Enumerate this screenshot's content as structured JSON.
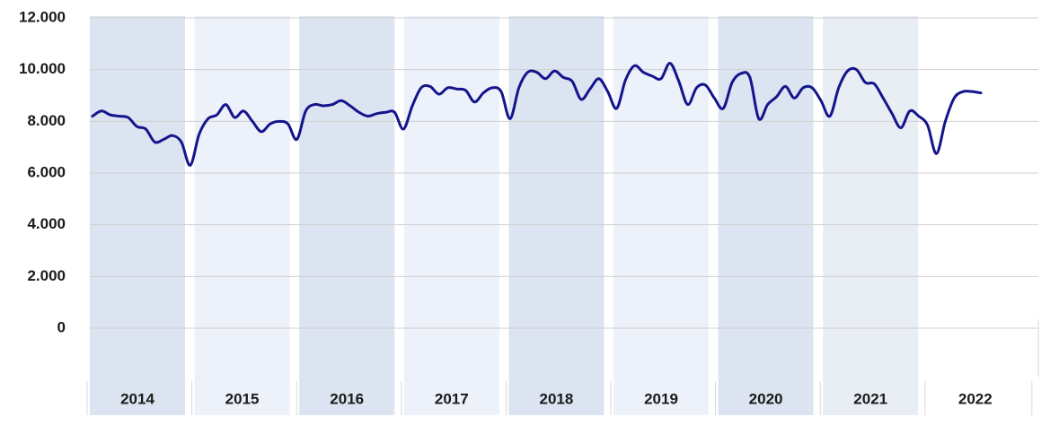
{
  "chart_data": {
    "type": "line",
    "categories": [
      "2014",
      "2015",
      "2016",
      "2017",
      "2018",
      "2019",
      "2020",
      "2021",
      "2022"
    ],
    "values": [
      [
        8200,
        8400,
        8250,
        8200,
        8150,
        7800,
        7700,
        7200,
        7300,
        7450,
        7200,
        6300
      ],
      [
        7500,
        8100,
        8250,
        8650,
        8150,
        8400,
        8000,
        7600,
        7900,
        8000,
        7900,
        7300
      ],
      [
        8400,
        8650,
        8600,
        8650,
        8800,
        8600,
        8350,
        8200,
        8300,
        8350,
        8350,
        7700
      ],
      [
        8600,
        9300,
        9350,
        9050,
        9300,
        9250,
        9200,
        8750,
        9100,
        9300,
        9150,
        8100
      ],
      [
        9300,
        9900,
        9900,
        9650,
        9950,
        9700,
        9550,
        8850,
        9250,
        9650,
        9150,
        8500
      ],
      [
        9600,
        10150,
        9900,
        9750,
        9650,
        10250,
        9550,
        8650,
        9300,
        9400,
        8900,
        8500
      ],
      [
        9500,
        9850,
        9700,
        8100,
        8650,
        8950,
        9350,
        8900,
        9300,
        9300,
        8800,
        8200
      ],
      [
        9300,
        9950,
        10000,
        9500,
        9450,
        8900,
        8300,
        7750,
        8400,
        8200,
        7850,
        6750
      ],
      [
        8000,
        8900,
        9150,
        9150,
        9100
      ]
    ],
    "color": "#14148c",
    "ylim": [
      0,
      12000
    ],
    "yticks": [
      0,
      {
        "value": 2000,
        "label": "2.000"
      },
      {
        "value": 4000,
        "label": "4.000"
      },
      {
        "value": 6000,
        "label": "6.000"
      },
      {
        "value": 8000,
        "label": "8.000"
      },
      {
        "value": 10000,
        "label": "10.000"
      },
      {
        "value": 12000,
        "label": "12.000"
      }
    ],
    "grid": true
  }
}
